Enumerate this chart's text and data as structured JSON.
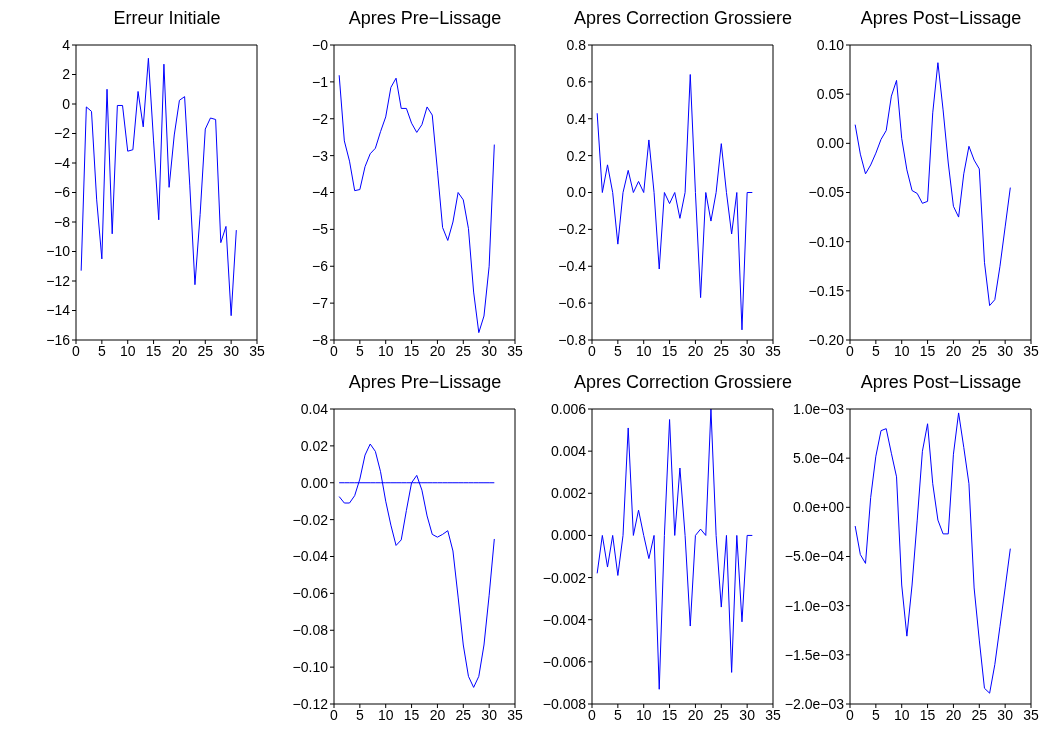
{
  "chart_data": [
    {
      "type": "line",
      "title": "Erreur Initiale",
      "x": [
        1,
        2,
        3,
        4,
        5,
        6,
        7,
        8,
        9,
        10,
        11,
        12,
        13,
        14,
        15,
        16,
        17,
        18,
        19,
        20,
        21,
        22,
        23,
        24,
        25,
        26,
        27,
        28,
        29,
        30,
        31
      ],
      "color": "#0000ff",
      "values": [
        -11.3,
        -0.2,
        -0.5,
        -6.5,
        -10.5,
        1.0,
        -8.8,
        -0.1,
        -0.1,
        -3.2,
        -3.1,
        0.85,
        -1.55,
        3.1,
        -2.5,
        -7.85,
        2.7,
        -5.65,
        -2.1,
        0.25,
        0.5,
        -5.5,
        -12.25,
        -7.5,
        -1.7,
        -0.95,
        -1.05,
        -9.4,
        -8.3,
        -14.35,
        -8.55
      ],
      "xlim": [
        0,
        35
      ],
      "xticks": [
        0,
        5,
        10,
        15,
        20,
        25,
        30,
        35
      ],
      "ylim": [
        -16,
        4
      ],
      "yticks": [
        {
          "value": 4,
          "label": "4"
        },
        {
          "value": 2,
          "label": "2"
        },
        {
          "value": 0,
          "label": "0"
        },
        {
          "value": -2,
          "label": "−2"
        },
        {
          "value": -4,
          "label": "−4"
        },
        {
          "value": -6,
          "label": "−6"
        },
        {
          "value": -8,
          "label": "−8"
        },
        {
          "value": -10,
          "label": "−10"
        },
        {
          "value": -12,
          "label": "−12"
        },
        {
          "value": -14,
          "label": "−14"
        },
        {
          "value": -16,
          "label": "−16"
        }
      ]
    },
    {
      "type": "line",
      "title": "Apres Pre−Lissage",
      "x": [
        1,
        2,
        3,
        4,
        5,
        6,
        7,
        8,
        9,
        10,
        11,
        12,
        13,
        14,
        15,
        16,
        17,
        18,
        19,
        20,
        21,
        22,
        23,
        24,
        25,
        26,
        27,
        28,
        29,
        30,
        31
      ],
      "color": "#0000ff",
      "values": [
        -0.82,
        -2.6,
        -3.15,
        -3.95,
        -3.92,
        -3.3,
        -2.95,
        -2.8,
        -2.35,
        -1.95,
        -1.15,
        -0.9,
        -1.72,
        -1.72,
        -2.12,
        -2.37,
        -2.16,
        -1.68,
        -1.9,
        -3.4,
        -4.95,
        -5.3,
        -4.8,
        -4.0,
        -4.2,
        -4.98,
        -6.7,
        -7.8,
        -7.35,
        -6.0,
        -2.7
      ],
      "xlim": [
        0,
        35
      ],
      "xticks": [
        0,
        5,
        10,
        15,
        20,
        25,
        30,
        35
      ],
      "ylim": [
        -8,
        0
      ],
      "yticks": [
        {
          "value": 0,
          "label": "−0"
        },
        {
          "value": -1,
          "label": "−1"
        },
        {
          "value": -2,
          "label": "−2"
        },
        {
          "value": -3,
          "label": "−3"
        },
        {
          "value": -4,
          "label": "−4"
        },
        {
          "value": -5,
          "label": "−5"
        },
        {
          "value": -6,
          "label": "−6"
        },
        {
          "value": -7,
          "label": "−7"
        },
        {
          "value": -8,
          "label": "−8"
        }
      ]
    },
    {
      "type": "line",
      "title": "Apres Correction Grossiere",
      "x": [
        1,
        2,
        3,
        4,
        5,
        6,
        7,
        8,
        9,
        10,
        11,
        12,
        13,
        14,
        15,
        16,
        17,
        18,
        19,
        20,
        21,
        22,
        23,
        24,
        25,
        26,
        27,
        28,
        29,
        30,
        31
      ],
      "color": "#0000ff",
      "values": [
        0.43,
        0.0,
        0.15,
        0.0,
        -0.28,
        0.0,
        0.12,
        0.0,
        0.06,
        0.0,
        0.285,
        0.0,
        -0.415,
        0.0,
        -0.06,
        0.0,
        -0.14,
        0.0,
        0.64,
        0.0,
        -0.57,
        0.0,
        -0.155,
        0.0,
        0.265,
        0.0,
        -0.225,
        0.0,
        -0.745,
        0.0,
        0.0
      ],
      "xlim": [
        0,
        35
      ],
      "xticks": [
        0,
        5,
        10,
        15,
        20,
        25,
        30,
        35
      ],
      "ylim": [
        -0.8,
        0.8
      ],
      "yticks": [
        {
          "value": 0.8,
          "label": "0.8"
        },
        {
          "value": 0.6,
          "label": "0.6"
        },
        {
          "value": 0.4,
          "label": "0.4"
        },
        {
          "value": 0.2,
          "label": "0.2"
        },
        {
          "value": 0,
          "label": "0.0"
        },
        {
          "value": -0.2,
          "label": "−0.2"
        },
        {
          "value": -0.4,
          "label": "−0.4"
        },
        {
          "value": -0.6,
          "label": "−0.6"
        },
        {
          "value": -0.8,
          "label": "−0.8"
        }
      ]
    },
    {
      "type": "line",
      "title": "Apres Post−Lissage",
      "x": [
        1,
        2,
        3,
        4,
        5,
        6,
        7,
        8,
        9,
        10,
        11,
        12,
        13,
        14,
        15,
        16,
        17,
        18,
        19,
        20,
        21,
        22,
        23,
        24,
        25,
        26,
        27,
        28,
        29,
        30,
        31
      ],
      "color": "#0000ff",
      "values": [
        0.019,
        -0.011,
        -0.031,
        -0.022,
        -0.01,
        0.004,
        0.013,
        0.048,
        0.064,
        0.005,
        -0.027,
        -0.048,
        -0.051,
        -0.061,
        -0.059,
        0.031,
        0.082,
        0.034,
        -0.02,
        -0.064,
        -0.075,
        -0.031,
        -0.003,
        -0.017,
        -0.026,
        -0.121,
        -0.165,
        -0.159,
        -0.125,
        -0.085,
        -0.045
      ],
      "xlim": [
        0,
        35
      ],
      "xticks": [
        0,
        5,
        10,
        15,
        20,
        25,
        30,
        35
      ],
      "ylim": [
        -0.2,
        0.1
      ],
      "yticks": [
        {
          "value": 0.1,
          "label": "0.10"
        },
        {
          "value": 0.05,
          "label": "0.05"
        },
        {
          "value": 0,
          "label": "0.00"
        },
        {
          "value": -0.05,
          "label": "−0.05"
        },
        {
          "value": -0.1,
          "label": "−0.10"
        },
        {
          "value": -0.15,
          "label": "−0.15"
        },
        {
          "value": -0.2,
          "label": "−0.20"
        }
      ]
    },
    {
      "type": "line",
      "title": "Apres Pre−Lissage",
      "x": [
        1,
        2,
        3,
        4,
        5,
        6,
        7,
        8,
        9,
        10,
        11,
        12,
        13,
        14,
        15,
        16,
        17,
        18,
        19,
        20,
        21,
        22,
        23,
        24,
        25,
        26,
        27,
        28,
        29,
        30,
        31
      ],
      "series": [
        {
          "color": "#0000ff",
          "values": [
            0,
            0,
            0,
            0,
            0,
            0,
            0,
            0,
            0,
            0,
            0,
            0,
            0,
            0,
            0,
            0,
            0,
            0,
            0,
            0,
            0,
            0,
            0,
            0,
            0,
            0,
            0,
            0,
            0,
            0,
            0
          ]
        },
        {
          "color": "#0000ff",
          "values": [
            -0.0075,
            -0.011,
            -0.011,
            -0.007,
            0.002,
            0.015,
            0.021,
            0.017,
            0.006,
            -0.01,
            -0.023,
            -0.034,
            -0.031,
            -0.015,
            0.0,
            0.004,
            -0.004,
            -0.018,
            -0.028,
            -0.0295,
            -0.028,
            -0.026,
            -0.037,
            -0.062,
            -0.088,
            -0.105,
            -0.111,
            -0.105,
            -0.088,
            -0.061,
            -0.0305
          ]
        }
      ],
      "xlim": [
        0,
        35
      ],
      "xticks": [
        0,
        5,
        10,
        15,
        20,
        25,
        30,
        35
      ],
      "ylim": [
        -0.12,
        0.04
      ],
      "yticks": [
        {
          "value": 0.04,
          "label": "0.04"
        },
        {
          "value": 0.02,
          "label": "0.02"
        },
        {
          "value": 0,
          "label": "0.00"
        },
        {
          "value": -0.02,
          "label": "−0.02"
        },
        {
          "value": -0.04,
          "label": "−0.04"
        },
        {
          "value": -0.06,
          "label": "−0.06"
        },
        {
          "value": -0.08,
          "label": "−0.08"
        },
        {
          "value": -0.1,
          "label": "−0.10"
        },
        {
          "value": -0.12,
          "label": "−0.12"
        }
      ]
    },
    {
      "type": "line",
      "title": "Apres Correction Grossiere",
      "x": [
        1,
        2,
        3,
        4,
        5,
        6,
        7,
        8,
        9,
        10,
        11,
        12,
        13,
        14,
        15,
        16,
        17,
        18,
        19,
        20,
        21,
        22,
        23,
        24,
        25,
        26,
        27,
        28,
        29,
        30,
        31
      ],
      "color": "#0000ff",
      "values": [
        -0.0018,
        0,
        -0.0015,
        0,
        -0.0019,
        0,
        0.0051,
        0,
        0.0012,
        0,
        -0.0011,
        0,
        -0.0073,
        0,
        0.0055,
        0,
        0.0032,
        0,
        -0.0043,
        0,
        0.0003,
        0,
        0.006,
        0,
        -0.0034,
        0,
        -0.0065,
        0,
        -0.0041,
        0,
        0
      ],
      "xlim": [
        0,
        35
      ],
      "xticks": [
        0,
        5,
        10,
        15,
        20,
        25,
        30,
        35
      ],
      "ylim": [
        -0.008,
        0.006
      ],
      "yticks": [
        {
          "value": 0.006,
          "label": "0.006"
        },
        {
          "value": 0.004,
          "label": "0.004"
        },
        {
          "value": 0.002,
          "label": "0.002"
        },
        {
          "value": 0,
          "label": "0.000"
        },
        {
          "value": -0.002,
          "label": "−0.002"
        },
        {
          "value": -0.004,
          "label": "−0.004"
        },
        {
          "value": -0.006,
          "label": "−0.006"
        },
        {
          "value": -0.008,
          "label": "−0.008"
        }
      ]
    },
    {
      "type": "line",
      "title": "Apres Post−Lissage",
      "x": [
        1,
        2,
        3,
        4,
        5,
        6,
        7,
        8,
        9,
        10,
        11,
        12,
        13,
        14,
        15,
        16,
        17,
        18,
        19,
        20,
        21,
        22,
        23,
        24,
        25,
        26,
        27,
        28,
        29,
        30,
        31
      ],
      "color": "#0000ff",
      "values": [
        -0.00019,
        -0.00048,
        -0.00057,
        0.0001,
        0.00052,
        0.00078,
        0.0008,
        0.00055,
        0.00031,
        -0.00079,
        -0.00131,
        -0.00079,
        -0.00013,
        0.00057,
        0.00085,
        0.00024,
        -0.00013,
        -0.00027,
        -0.00027,
        0.00054,
        0.00096,
        0.00061,
        0.00024,
        -0.00082,
        -0.00135,
        -0.00184,
        -0.00189,
        -0.0016,
        -0.00121,
        -0.00082,
        -0.00042
      ],
      "xlim": [
        0,
        35
      ],
      "xticks": [
        0,
        5,
        10,
        15,
        20,
        25,
        30,
        35
      ],
      "ylim": [
        -0.002,
        0.001
      ],
      "yticks": [
        {
          "value": 0.001,
          "label": "1.0e−03"
        },
        {
          "value": 0.0005,
          "label": "5.0e−04"
        },
        {
          "value": 0,
          "label": "0.0e+00"
        },
        {
          "value": -0.0005,
          "label": "−5.0e−04"
        },
        {
          "value": -0.001,
          "label": "−1.0e−03"
        },
        {
          "value": -0.0015,
          "label": "−1.5e−03"
        },
        {
          "value": -0.002,
          "label": "−2.0e−03"
        }
      ]
    }
  ]
}
